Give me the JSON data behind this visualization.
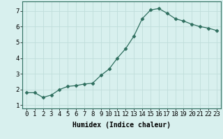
{
  "x": [
    0,
    1,
    2,
    3,
    4,
    5,
    6,
    7,
    8,
    9,
    10,
    11,
    12,
    13,
    14,
    15,
    16,
    17,
    18,
    19,
    20,
    21,
    22,
    23
  ],
  "y": [
    1.8,
    1.8,
    1.5,
    1.65,
    2.0,
    2.2,
    2.25,
    2.35,
    2.4,
    2.9,
    3.3,
    4.0,
    4.6,
    5.4,
    6.5,
    7.05,
    7.15,
    6.85,
    6.5,
    6.35,
    6.15,
    6.0,
    5.9,
    5.75
  ],
  "xlabel": "Humidex (Indice chaleur)",
  "xlim": [
    -0.5,
    23.5
  ],
  "ylim": [
    0.8,
    7.6
  ],
  "line_color": "#2e6e5e",
  "marker_size": 2.5,
  "bg_color": "#d8f0ee",
  "grid_color": "#c0deda",
  "xtick_labels": [
    "0",
    "1",
    "2",
    "3",
    "4",
    "5",
    "6",
    "7",
    "8",
    "9",
    "10",
    "11",
    "12",
    "13",
    "14",
    "15",
    "16",
    "17",
    "18",
    "19",
    "20",
    "21",
    "22",
    "23"
  ],
  "ytick_values": [
    1,
    2,
    3,
    4,
    5,
    6,
    7
  ],
  "font_size": 6.5
}
